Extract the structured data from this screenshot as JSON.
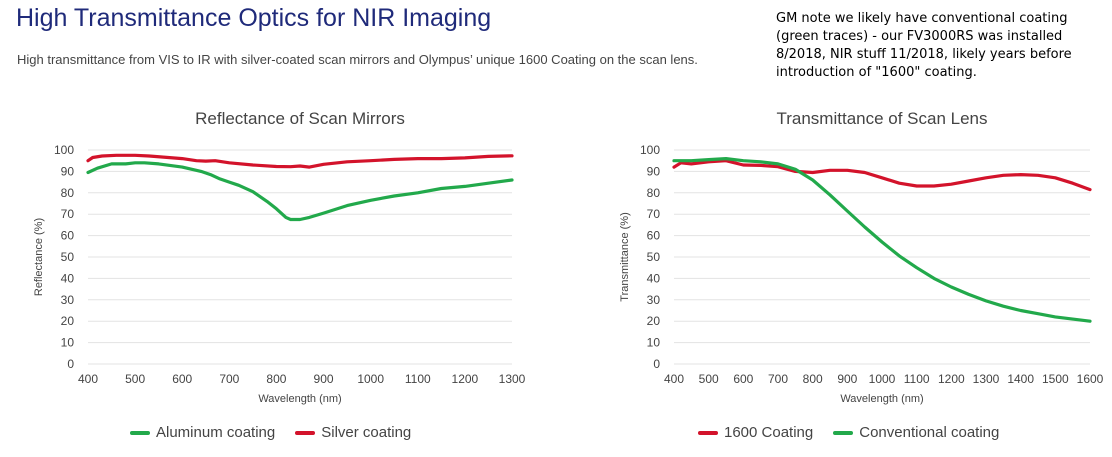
{
  "header": {
    "title": "High Transmittance Optics for NIR Imaging",
    "subtitle": "High transmittance from VIS to IR with silver-coated scan mirrors and Olympus’ unique 1600 Coating on the scan lens."
  },
  "note": {
    "lines": [
      "GM note we likely have conventional coating",
      "(green traces) - our FV3000RS was installed",
      "8/2018, NIR stuff 11/2018, likely years before",
      "introduction of \"1600\" coating."
    ]
  },
  "colors": {
    "green": "#22a94b",
    "red": "#d3132b",
    "grid": "#e3e3e3",
    "axis_text": "#444444"
  },
  "chart_data": [
    {
      "type": "line",
      "title": "Reflectance of Scan Mirrors",
      "xlabel": "Wavelength (nm)",
      "ylabel": "Reflectance (%)",
      "xlim": [
        400,
        1300
      ],
      "ylim": [
        0,
        100
      ],
      "xticks": [
        400,
        500,
        600,
        700,
        800,
        900,
        1000,
        1100,
        1200,
        1300
      ],
      "yticks": [
        0,
        10,
        20,
        30,
        40,
        50,
        60,
        70,
        80,
        90,
        100
      ],
      "grid": true,
      "legend_position": "bottom",
      "series": [
        {
          "name": "Aluminum coating",
          "color": "#22a94b",
          "x": [
            400,
            420,
            450,
            480,
            500,
            520,
            550,
            600,
            640,
            660,
            680,
            700,
            720,
            750,
            780,
            800,
            820,
            830,
            850,
            870,
            900,
            950,
            1000,
            1050,
            1100,
            1150,
            1200,
            1250,
            1300
          ],
          "y": [
            89.5,
            91.5,
            93.5,
            93.5,
            94,
            94,
            93.5,
            92,
            90,
            88.5,
            86.5,
            85,
            83.5,
            80.5,
            76,
            72.5,
            68.5,
            67.5,
            67.5,
            68.5,
            70.5,
            74,
            76.5,
            78.5,
            80,
            82,
            83,
            84.5,
            86
          ]
        },
        {
          "name": "Silver coating",
          "color": "#d3132b",
          "x": [
            400,
            410,
            430,
            460,
            500,
            530,
            570,
            600,
            630,
            650,
            670,
            700,
            750,
            800,
            830,
            850,
            870,
            900,
            950,
            1000,
            1050,
            1100,
            1150,
            1200,
            1250,
            1300
          ],
          "y": [
            95,
            96.5,
            97.2,
            97.5,
            97.5,
            97.2,
            96.5,
            96,
            95,
            94.8,
            95,
            94,
            93,
            92.3,
            92.2,
            92.5,
            92,
            93.3,
            94.5,
            95,
            95.6,
            96,
            96,
            96.3,
            97,
            97.3
          ]
        }
      ]
    },
    {
      "type": "line",
      "title": "Transmittance of Scan Lens",
      "xlabel": "Wavelength (nm)",
      "ylabel": "Transmittance (%)",
      "xlim": [
        400,
        1600
      ],
      "ylim": [
        0,
        100
      ],
      "xticks": [
        400,
        500,
        600,
        700,
        800,
        900,
        1000,
        1100,
        1200,
        1300,
        1400,
        1500,
        1600
      ],
      "yticks": [
        0,
        10,
        20,
        30,
        40,
        50,
        60,
        70,
        80,
        90,
        100
      ],
      "grid": true,
      "legend_position": "bottom",
      "series": [
        {
          "name": "1600 Coating",
          "color": "#d3132b",
          "x": [
            400,
            420,
            450,
            500,
            550,
            600,
            650,
            700,
            750,
            800,
            850,
            900,
            950,
            1000,
            1050,
            1100,
            1150,
            1200,
            1250,
            1300,
            1350,
            1400,
            1450,
            1500,
            1550,
            1600
          ],
          "y": [
            92,
            94,
            93.5,
            94.5,
            95,
            93,
            92.8,
            92.2,
            90,
            89.5,
            90.5,
            90.5,
            89.5,
            87,
            84.5,
            83.2,
            83.2,
            84,
            85.5,
            87,
            88.2,
            88.5,
            88.2,
            87,
            84.5,
            81.5
          ]
        },
        {
          "name": "Conventional coating",
          "color": "#22a94b",
          "x": [
            400,
            450,
            500,
            550,
            600,
            650,
            700,
            750,
            800,
            850,
            900,
            950,
            1000,
            1050,
            1100,
            1150,
            1200,
            1250,
            1300,
            1350,
            1400,
            1450,
            1500,
            1550,
            1600
          ],
          "y": [
            95,
            95,
            95.5,
            96,
            95,
            94.5,
            93.5,
            91,
            86,
            79,
            71.5,
            64,
            57,
            50.5,
            45,
            40,
            36,
            32.5,
            29.5,
            27,
            25,
            23.5,
            22,
            21,
            20
          ]
        }
      ]
    }
  ]
}
